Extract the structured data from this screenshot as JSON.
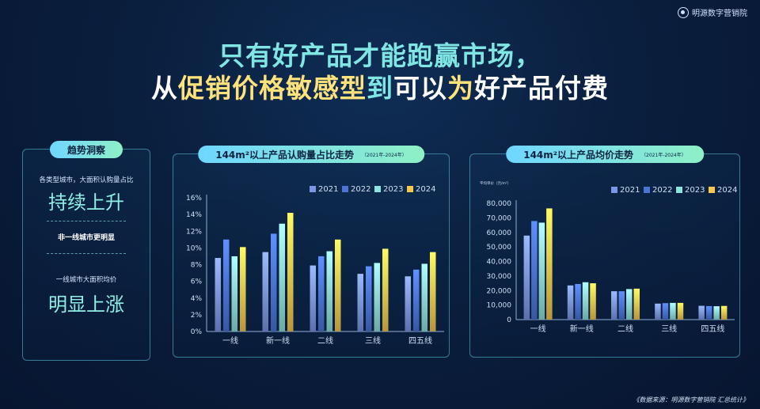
{
  "brand": {
    "name": "明源数字营销院"
  },
  "headline": {
    "line1": "只有好产品才能跑赢市场，",
    "line2_parts": [
      {
        "text": "从",
        "tone": "w"
      },
      {
        "text": "促销价格敏感型",
        "tone": "y"
      },
      {
        "text": "到",
        "tone": "g"
      },
      {
        "text": "可以",
        "tone": "w"
      },
      {
        "text": "为",
        "tone": "y"
      },
      {
        "text": "好产品付费",
        "tone": "w"
      }
    ]
  },
  "insight_panel": {
    "title": "趋势洞察",
    "text1": "各类型城市，大面积认购量占比",
    "big1": "持续上升",
    "text2": "非一线城市更明显",
    "text3": "一线城市大面积均价",
    "big2": "明显上涨"
  },
  "chart_data": [
    {
      "type": "bar",
      "title": "144m²以上产品认购量占比走势",
      "subtitle": "（2021年-2024年）",
      "categories": [
        "一线",
        "新一线",
        "二线",
        "三线",
        "四五线"
      ],
      "series": [
        {
          "name": "2021",
          "values": [
            8.8,
            9.5,
            7.9,
            6.9,
            6.6
          ]
        },
        {
          "name": "2022",
          "values": [
            11.0,
            11.7,
            9.0,
            7.8,
            7.4
          ]
        },
        {
          "name": "2023",
          "values": [
            9.0,
            12.9,
            9.6,
            8.2,
            8.1
          ]
        },
        {
          "name": "2024",
          "values": [
            10.1,
            14.2,
            11.0,
            9.9,
            9.5
          ]
        }
      ],
      "ylim": [
        0,
        16
      ],
      "yticks": [
        "0%",
        "2%",
        "4%",
        "6%",
        "8%",
        "10%",
        "12%",
        "14%",
        "16%"
      ],
      "ylabel": "",
      "grid": false,
      "legend": "top-right"
    },
    {
      "type": "bar",
      "title": "144m²以上产品均价走势",
      "subtitle": "（2021年-2024年）",
      "categories": [
        "一线",
        "新一线",
        "二线",
        "三线",
        "四五线"
      ],
      "series": [
        {
          "name": "2021",
          "values": [
            57800,
            23500,
            19500,
            11000,
            9500
          ]
        },
        {
          "name": "2022",
          "values": [
            67800,
            24500,
            19500,
            11300,
            9300
          ]
        },
        {
          "name": "2023",
          "values": [
            66700,
            25700,
            21000,
            11500,
            9200
          ]
        },
        {
          "name": "2024",
          "values": [
            76500,
            25000,
            21300,
            11500,
            9400
          ]
        }
      ],
      "ylim": [
        0,
        80000
      ],
      "yticks": [
        "0",
        "10,000",
        "20,000",
        "30,000",
        "40,000",
        "50,000",
        "60,000",
        "70,000",
        "80,000"
      ],
      "ylabel": "平均单价（元/m²）",
      "grid": false,
      "legend": "top-right"
    }
  ],
  "colors": {
    "series": [
      "#7c95e6",
      "#4b74d6",
      "#8ee3dc",
      "#f5c84e"
    ],
    "panel_border": "#5ac8dc",
    "accent": "#8ff0e6"
  },
  "source": "《数据来源：明源数字营销院 汇总统计》"
}
